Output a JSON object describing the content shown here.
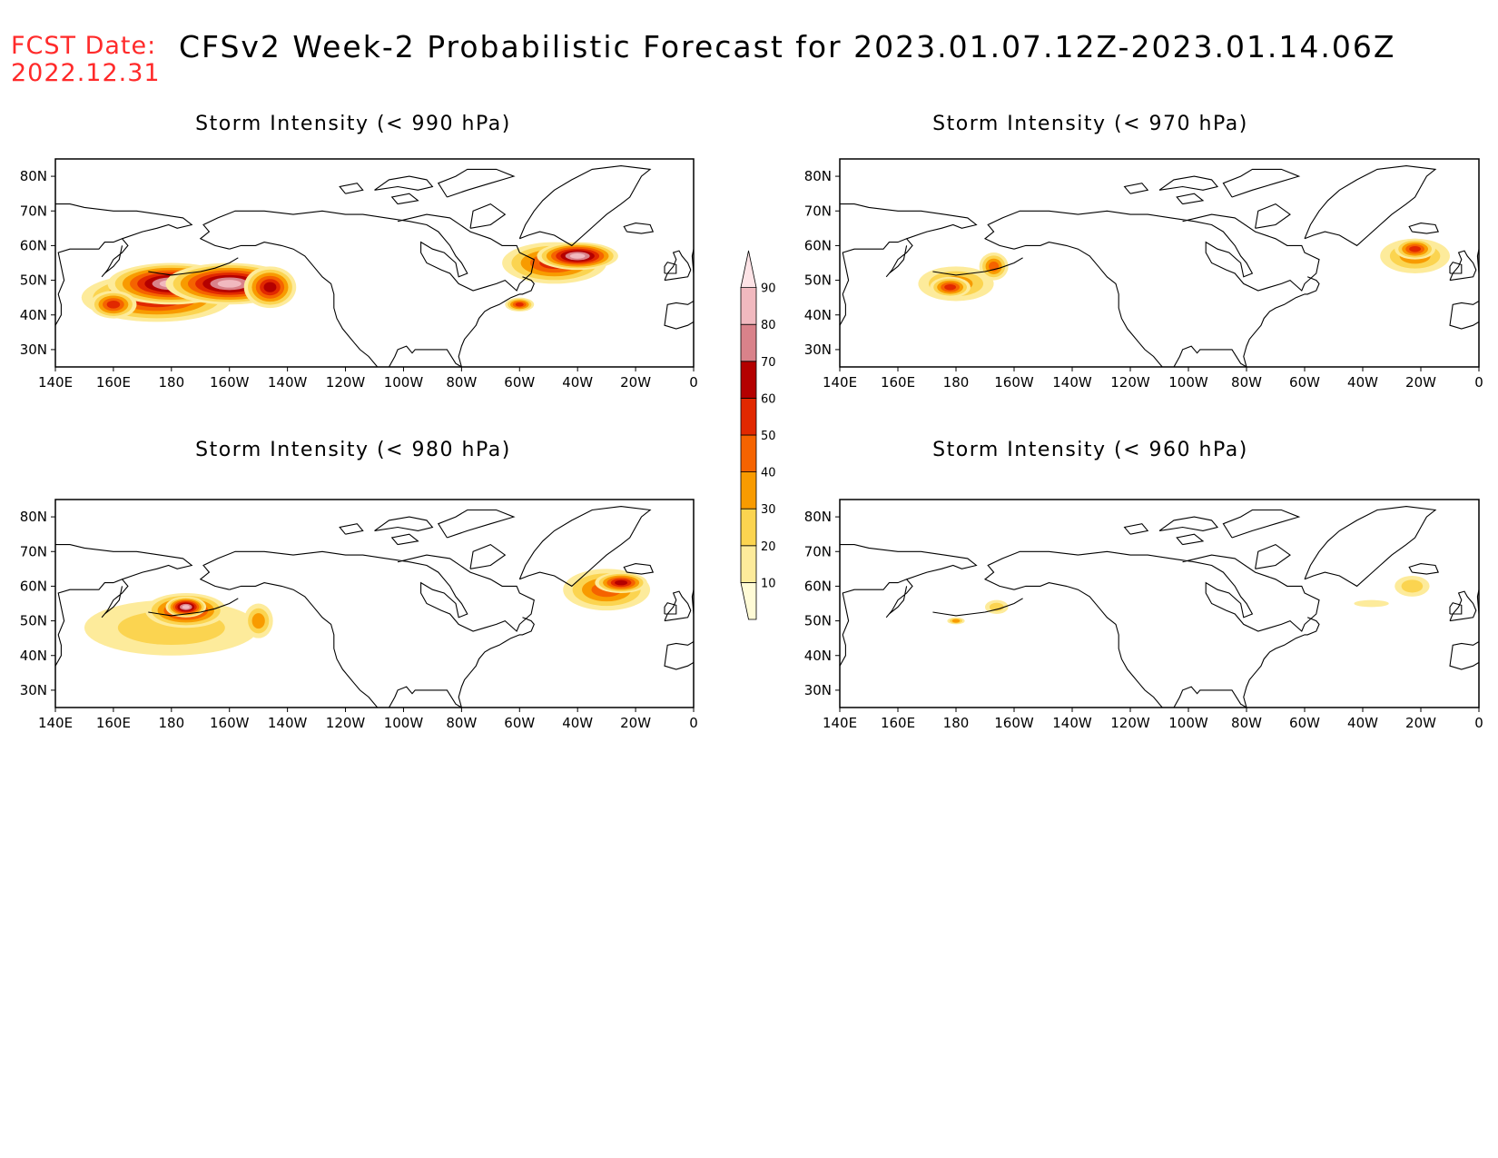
{
  "header": {
    "fcst_label": "FCST Date:",
    "fcst_date": "2022.12.31",
    "title": "CFSv2 Week-2 Probabilistic Forecast for 2023.01.07.12Z-2023.01.14.06Z"
  },
  "axes": {
    "lon_ticks": [
      "140E",
      "160E",
      "180",
      "160W",
      "140W",
      "120W",
      "100W",
      "80W",
      "60W",
      "40W",
      "20W",
      "0"
    ],
    "lat_ticks": [
      "80N",
      "70N",
      "60N",
      "50N",
      "40N",
      "30N"
    ]
  },
  "colorbar": {
    "levels": [
      "10",
      "20",
      "30",
      "40",
      "50",
      "60",
      "70",
      "80",
      "90"
    ],
    "colors": [
      "#fffbd6",
      "#fdeb9b",
      "#fbd450",
      "#f89b00",
      "#f56300",
      "#e12800",
      "#b40000",
      "#d9828a",
      "#f1b9bf",
      "#fde3e6"
    ]
  },
  "panels": [
    {
      "title": "Storm Intensity (< 990 hPa)",
      "blobs": [
        {
          "lon": 175,
          "lat": 45,
          "rlon": 26,
          "rlat": 7,
          "level": 6
        },
        {
          "lon": 180,
          "lat": 49,
          "rlon": 22,
          "rlat": 6,
          "level": 8
        },
        {
          "lon": 200,
          "lat": 49,
          "rlon": 22,
          "rlat": 6,
          "level": 8
        },
        {
          "lon": 214,
          "lat": 48,
          "rlon": 9,
          "rlat": 6,
          "level": 6
        },
        {
          "lon": 160,
          "lat": 43,
          "rlon": 8,
          "rlat": 4,
          "level": 5
        },
        {
          "lon": 312,
          "lat": 55,
          "rlon": 18,
          "rlat": 6,
          "level": 5
        },
        {
          "lon": 320,
          "lat": 57,
          "rlon": 14,
          "rlat": 4,
          "level": 8
        },
        {
          "lon": 300,
          "lat": 43,
          "rlon": 5,
          "rlat": 2,
          "level": 5
        }
      ]
    },
    {
      "title": "Storm Intensity (< 970 hPa)",
      "blobs": [
        {
          "lon": 180,
          "lat": 49,
          "rlon": 13,
          "rlat": 5,
          "level": 3
        },
        {
          "lon": 178,
          "lat": 48,
          "rlon": 7,
          "rlat": 3,
          "level": 5
        },
        {
          "lon": 193,
          "lat": 54,
          "rlon": 5,
          "rlat": 4,
          "level": 4
        },
        {
          "lon": 338,
          "lat": 57,
          "rlon": 12,
          "rlat": 5,
          "level": 3
        },
        {
          "lon": 338,
          "lat": 59,
          "rlon": 7,
          "rlat": 3,
          "level": 5
        }
      ]
    },
    {
      "title": "Storm Intensity (< 980 hPa)",
      "blobs": [
        {
          "lon": 180,
          "lat": 48,
          "rlon": 30,
          "rlat": 8,
          "level": 2
        },
        {
          "lon": 185,
          "lat": 53,
          "rlon": 14,
          "rlat": 5,
          "level": 6
        },
        {
          "lon": 185,
          "lat": 54,
          "rlon": 7,
          "rlat": 3,
          "level": 8
        },
        {
          "lon": 210,
          "lat": 50,
          "rlon": 5,
          "rlat": 5,
          "level": 3
        },
        {
          "lon": 330,
          "lat": 59,
          "rlon": 15,
          "rlat": 6,
          "level": 4
        },
        {
          "lon": 335,
          "lat": 61,
          "rlon": 9,
          "rlat": 3,
          "level": 6
        }
      ]
    },
    {
      "title": "Storm Intensity (< 960 hPa)",
      "blobs": [
        {
          "lon": 180,
          "lat": 50,
          "rlon": 3,
          "rlat": 1,
          "level": 3
        },
        {
          "lon": 194,
          "lat": 54,
          "rlon": 4,
          "rlat": 2,
          "level": 2
        },
        {
          "lon": 323,
          "lat": 55,
          "rlon": 6,
          "rlat": 1,
          "level": 1
        },
        {
          "lon": 337,
          "lat": 60,
          "rlon": 6,
          "rlat": 3,
          "level": 2
        }
      ]
    }
  ]
}
